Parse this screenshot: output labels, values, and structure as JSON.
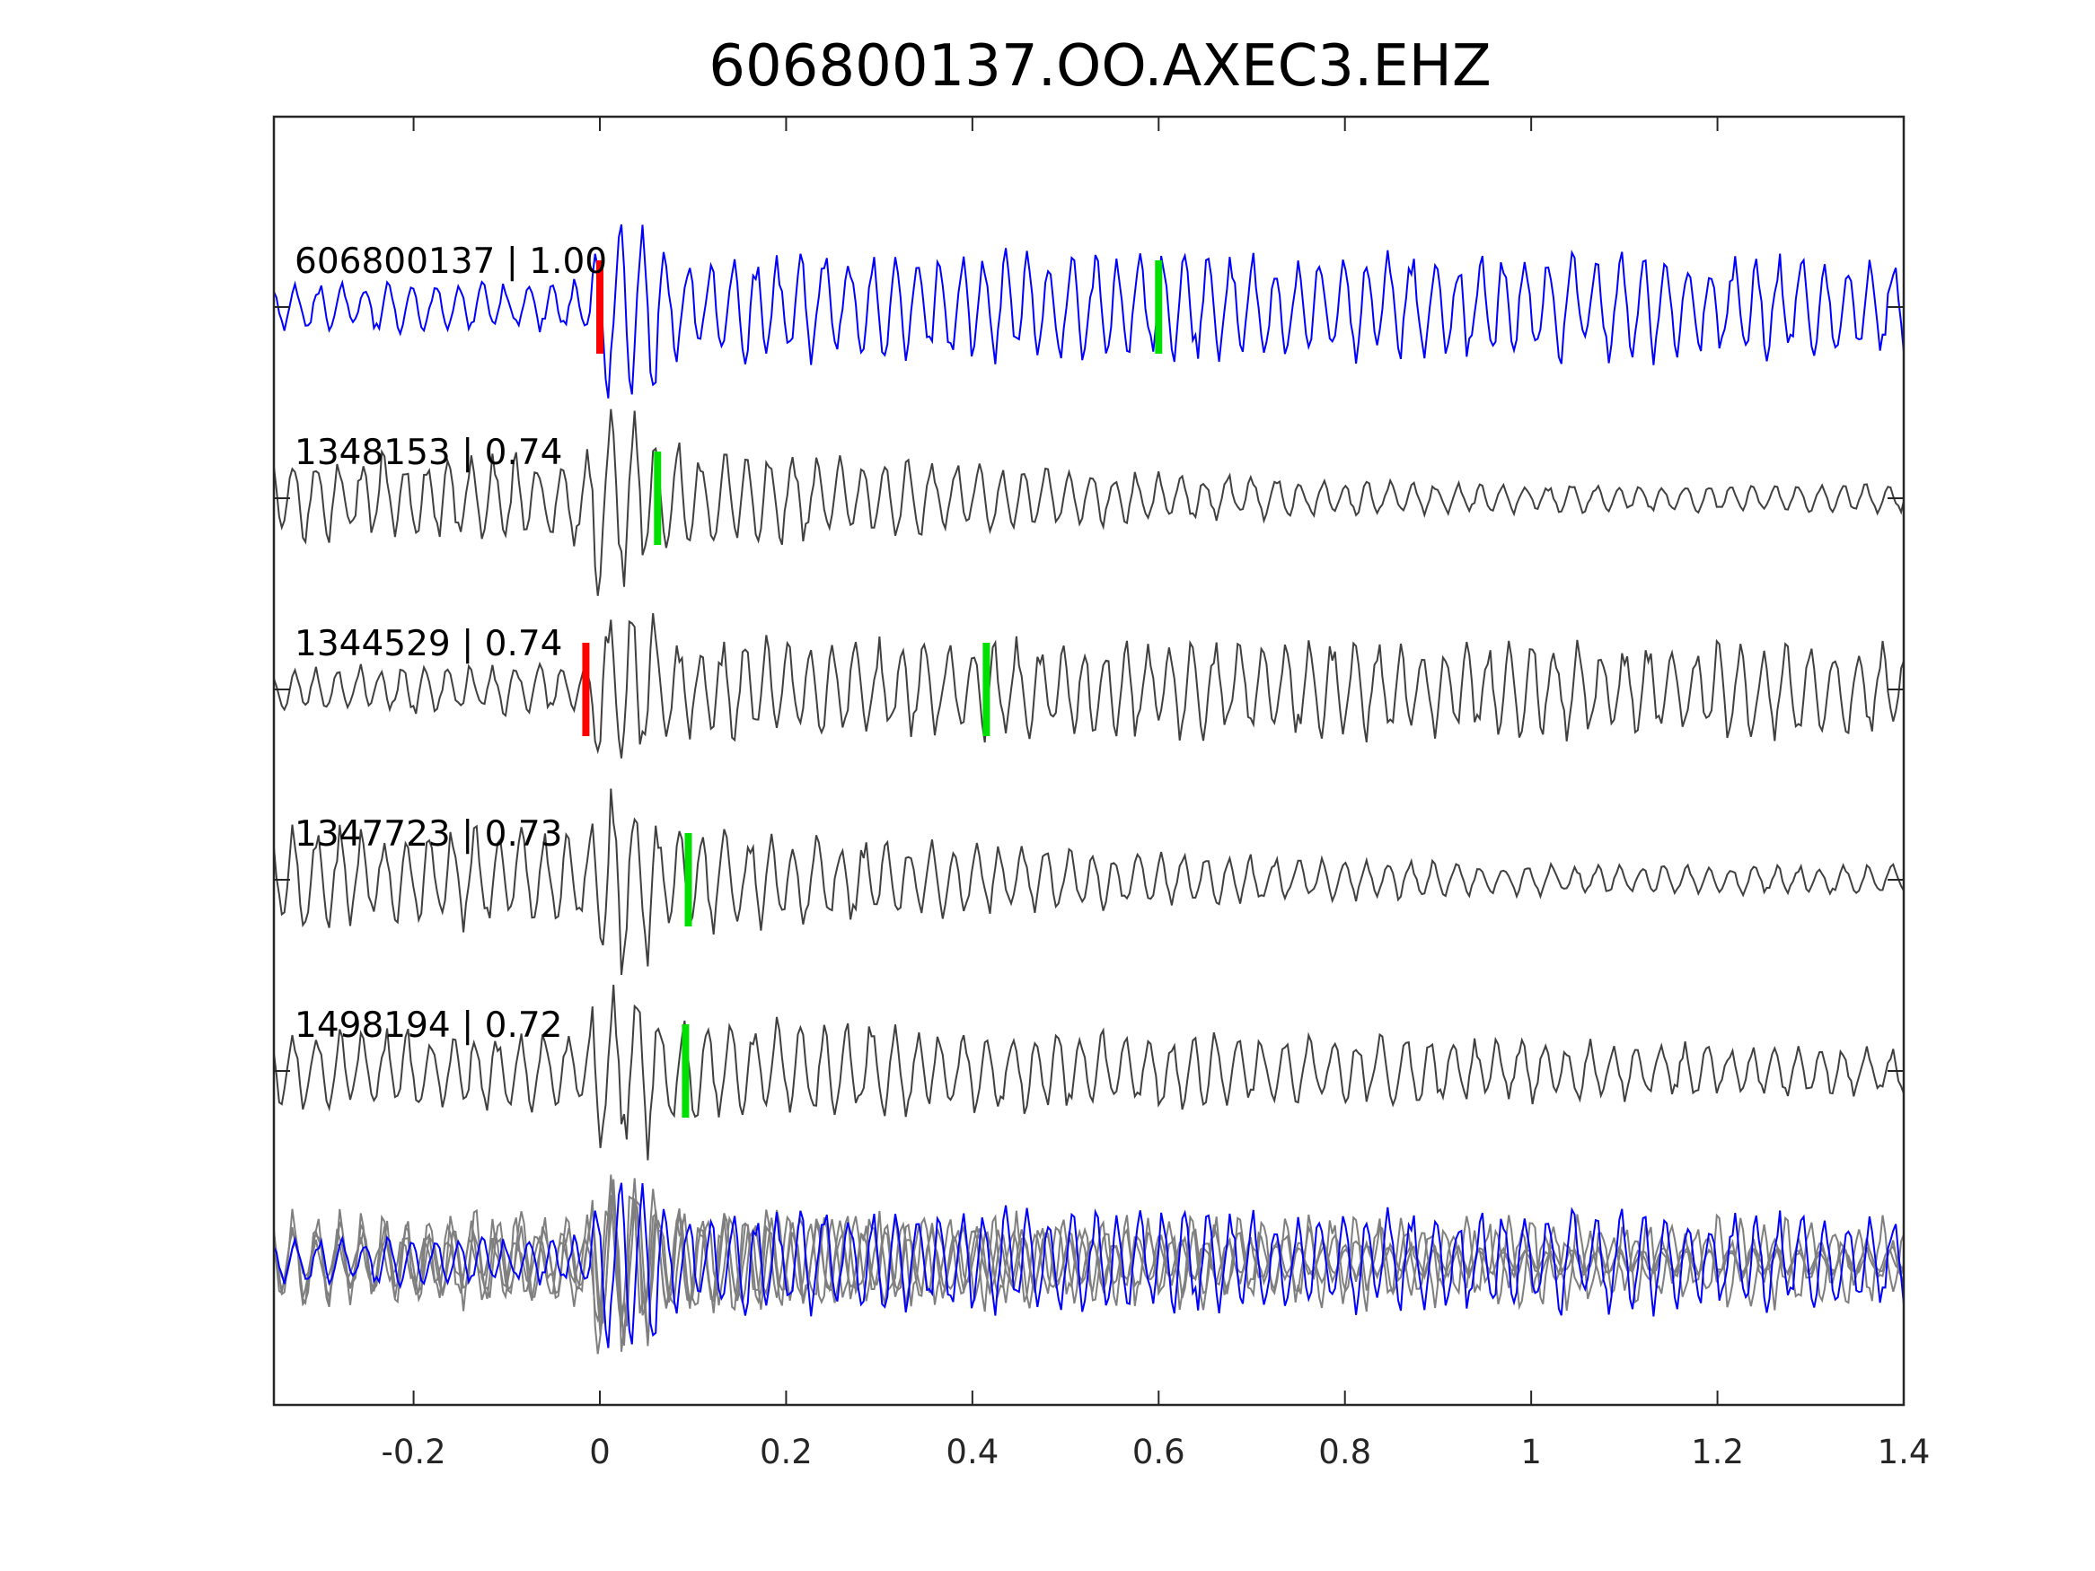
{
  "chart_data": {
    "type": "line",
    "title": "606800137.OO.AXEC3.EHZ",
    "xlabel": "",
    "ylabel": "",
    "xlim": [
      -0.35,
      1.4
    ],
    "x_ticks": [
      -0.2,
      0,
      0.2,
      0.4,
      0.6,
      0.8,
      1,
      1.2,
      1.4
    ],
    "x_tick_labels": [
      "-0.2",
      "0",
      "0.2",
      "0.4",
      "0.6",
      "0.8",
      "1",
      "1.2",
      "1.4"
    ],
    "y_ticks_visible": false,
    "grid": false,
    "colors": {
      "master": "#0000ff",
      "trace": "#404040",
      "stack": "#7f7f7f",
      "p_pick": "#ff0000",
      "s_pick": "#00e000",
      "axis": "#262626"
    },
    "traces": [
      {
        "label": "606800137 | 1.00",
        "p_pick": 0.0,
        "s_pick": 0.6,
        "color": "master"
      },
      {
        "label": "1348153 | 0.74",
        "p_pick": null,
        "s_pick": 0.062,
        "color": "trace"
      },
      {
        "label": "1344529 | 0.74",
        "p_pick": -0.015,
        "s_pick": 0.415,
        "color": "trace"
      },
      {
        "label": "1347723 | 0.73",
        "p_pick": null,
        "s_pick": 0.095,
        "color": "trace"
      },
      {
        "label": "1498194 | 0.72",
        "p_pick": null,
        "s_pick": 0.092,
        "color": "trace"
      }
    ],
    "stack": {
      "description_visible": false
    }
  }
}
